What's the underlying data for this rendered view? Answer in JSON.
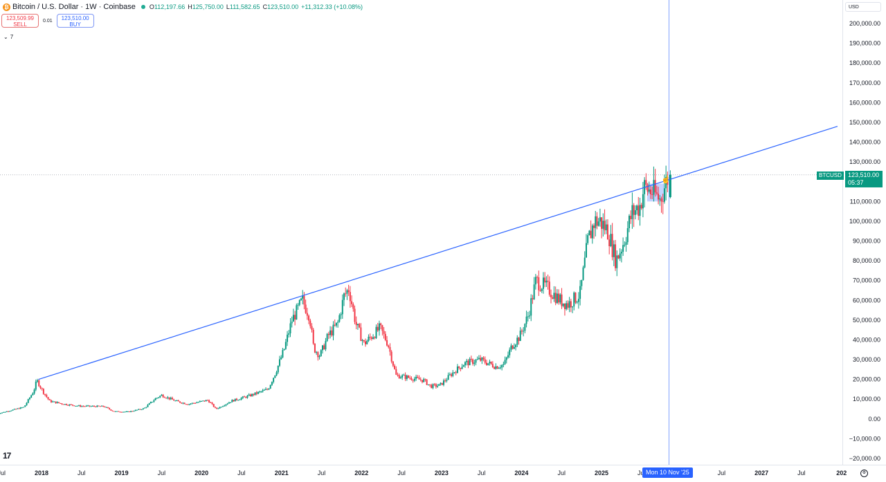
{
  "header": {
    "symbol_line": "Bitcoin / U.S. Dollar · 1W · Coinbase",
    "coin_glyph": "₿",
    "ohlc": [
      {
        "k": "O",
        "v": "112,197.66"
      },
      {
        "k": "H",
        "v": "125,750.00"
      },
      {
        "k": "L",
        "v": "111,582.65"
      },
      {
        "k": "C",
        "v": "123,510.00"
      },
      {
        "k": "",
        "v": "+11,312.33 (+10.08%)"
      }
    ]
  },
  "trade": {
    "sell_price": "123,509.99",
    "sell_label": "SELL",
    "spread": "0.01",
    "buy_price": "123,510.00",
    "buy_label": "BUY"
  },
  "indicator_toggle": "7",
  "currency": "USD",
  "price_tag": {
    "symbol": "BTCUSD",
    "price": "123,510.00",
    "countdown": "05:37"
  },
  "crosshair_date": "Mon 10 Nov '25",
  "logo_text": "17",
  "colors": {
    "up": "#089981",
    "down": "#f23645",
    "trendline": "#2962ff",
    "crosshair": "#2962ff"
  },
  "chart_data": {
    "type": "candlestick",
    "title": "Bitcoin / U.S. Dollar · 1W · Coinbase",
    "timeframe": "1W",
    "ylim": [
      -22000,
      210000
    ],
    "xlim": [
      2017.45,
      2027.95
    ],
    "y_ticks": [
      "200,000.00",
      "190,000.00",
      "180,000.00",
      "170,000.00",
      "160,000.00",
      "150,000.00",
      "140,000.00",
      "130,000.00",
      "120,000.00",
      "110,000.00",
      "100,000.00",
      "90,000.00",
      "80,000.00",
      "70,000.00",
      "60,000.00",
      "50,000.00",
      "40,000.00",
      "30,000.00",
      "20,000.00",
      "10,000.00",
      "0.00",
      "−10,000.00",
      "−20,000.00"
    ],
    "x_ticks": [
      {
        "label": "Jul",
        "t": 2017.5
      },
      {
        "label": "2018",
        "t": 2018.0
      },
      {
        "label": "Jul",
        "t": 2018.5
      },
      {
        "label": "2019",
        "t": 2019.0
      },
      {
        "label": "Jul",
        "t": 2019.5
      },
      {
        "label": "2020",
        "t": 2020.0
      },
      {
        "label": "Jul",
        "t": 2020.5
      },
      {
        "label": "2021",
        "t": 2021.0
      },
      {
        "label": "Jul",
        "t": 2021.5
      },
      {
        "label": "2022",
        "t": 2022.0
      },
      {
        "label": "Jul",
        "t": 2022.5
      },
      {
        "label": "2023",
        "t": 2023.0
      },
      {
        "label": "Jul",
        "t": 2023.5
      },
      {
        "label": "2024",
        "t": 2024.0
      },
      {
        "label": "Jul",
        "t": 2024.5
      },
      {
        "label": "2025",
        "t": 2025.0
      },
      {
        "label": "Jul",
        "t": 2025.5
      },
      {
        "label": "Jul",
        "t": 2026.5
      },
      {
        "label": "2027",
        "t": 2027.0
      },
      {
        "label": "Jul",
        "t": 2027.5
      },
      {
        "label": "202",
        "t": 2028.0
      }
    ],
    "price_anchors": [
      [
        2017.45,
        2500
      ],
      [
        2017.62,
        4200
      ],
      [
        2017.8,
        6000
      ],
      [
        2017.92,
        14000
      ],
      [
        2017.96,
        19500
      ],
      [
        2018.05,
        13000
      ],
      [
        2018.12,
        9000
      ],
      [
        2018.3,
        7500
      ],
      [
        2018.5,
        6500
      ],
      [
        2018.8,
        6300
      ],
      [
        2018.92,
        3800
      ],
      [
        2019.1,
        3600
      ],
      [
        2019.3,
        5300
      ],
      [
        2019.45,
        10500
      ],
      [
        2019.52,
        12000
      ],
      [
        2019.7,
        9000
      ],
      [
        2019.85,
        7500
      ],
      [
        2020.1,
        9500
      ],
      [
        2020.2,
        5000
      ],
      [
        2020.4,
        9200
      ],
      [
        2020.6,
        11500
      ],
      [
        2020.85,
        15000
      ],
      [
        2020.95,
        24000
      ],
      [
        2021.05,
        35000
      ],
      [
        2021.15,
        50000
      ],
      [
        2021.28,
        60000
      ],
      [
        2021.37,
        52000
      ],
      [
        2021.42,
        36000
      ],
      [
        2021.5,
        32000
      ],
      [
        2021.6,
        42000
      ],
      [
        2021.72,
        48000
      ],
      [
        2021.8,
        62000
      ],
      [
        2021.86,
        66000
      ],
      [
        2021.95,
        48000
      ],
      [
        2022.05,
        38000
      ],
      [
        2022.25,
        46000
      ],
      [
        2022.35,
        38000
      ],
      [
        2022.45,
        22000
      ],
      [
        2022.6,
        21000
      ],
      [
        2022.8,
        19500
      ],
      [
        2022.88,
        16500
      ],
      [
        2023.0,
        17000
      ],
      [
        2023.15,
        23000
      ],
      [
        2023.3,
        28000
      ],
      [
        2023.5,
        30000
      ],
      [
        2023.7,
        26500
      ],
      [
        2023.8,
        27500
      ],
      [
        2023.9,
        37000
      ],
      [
        2024.0,
        42000
      ],
      [
        2024.1,
        52000
      ],
      [
        2024.2,
        70000
      ],
      [
        2024.35,
        66000
      ],
      [
        2024.5,
        60000
      ],
      [
        2024.6,
        58000
      ],
      [
        2024.75,
        63000
      ],
      [
        2024.85,
        90000
      ],
      [
        2024.93,
        100000
      ],
      [
        2025.0,
        100000
      ],
      [
        2025.1,
        95000
      ],
      [
        2025.2,
        80000
      ],
      [
        2025.3,
        90000
      ],
      [
        2025.4,
        104000
      ],
      [
        2025.5,
        108000
      ],
      [
        2025.55,
        117000
      ],
      [
        2025.65,
        115000
      ],
      [
        2025.75,
        111000
      ],
      [
        2025.86,
        123510
      ]
    ],
    "last_candle": {
      "open": 112197.66,
      "high": 125750.0,
      "low": 111582.65,
      "close": 123510.0
    },
    "trendline": {
      "from": [
        2017.96,
        20000
      ],
      "to": [
        2027.95,
        148000
      ]
    },
    "highlight_range": {
      "x": [
        2025.57,
        2025.79
      ],
      "y": [
        110000,
        119000
      ]
    },
    "last_price": 123510.0
  }
}
